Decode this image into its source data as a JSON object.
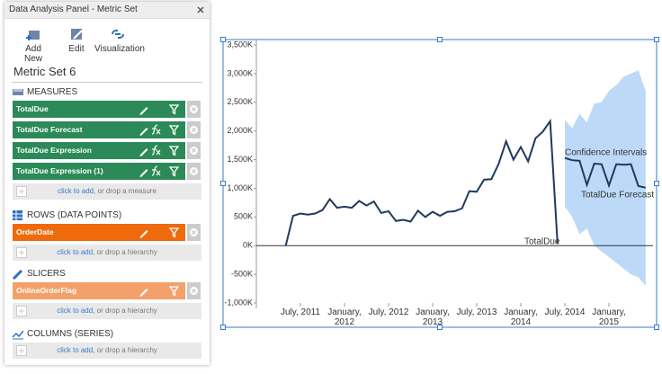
{
  "panel": {
    "title": "Data Analysis Panel - Metric Set",
    "toolbar": [
      "Add New",
      "Edit",
      "Visualization"
    ],
    "metric_set": "Metric Set 6",
    "sections": [
      {
        "title": "MEASURES",
        "color": "#2b8a57",
        "items": [
          {
            "label": "TotalDue",
            "formula": false
          },
          {
            "label": "TotalDue Forecast",
            "formula": true
          },
          {
            "label": "TotalDue Expression",
            "formula": true
          },
          {
            "label": "TotalDue Expression (1)",
            "formula": true
          }
        ],
        "drop_link": "click to add",
        "drop_text": ", or drop a measure"
      },
      {
        "title": "ROWS (DATA POINTS)",
        "color": "#ee6a0c",
        "items": [
          {
            "label": "OrderDate",
            "formula": false
          }
        ],
        "drop_link": "click to add",
        "drop_text": ", or drop a hierarchy"
      },
      {
        "title": "SLICERS",
        "color": "#f3a06a",
        "items": [
          {
            "label": "OnlineOrderFlag",
            "formula": false
          }
        ],
        "drop_link": "click to add",
        "drop_text": ", or drop a hierarchy"
      },
      {
        "title": "COLUMNS (SERIES)",
        "color": "#888888",
        "items": [],
        "drop_link": "click to add",
        "drop_text": ", or drop a hierarchy"
      }
    ]
  },
  "chart_data": {
    "type": "line",
    "xlim": [
      "2011-01",
      "2015-07"
    ],
    "xticks": [
      {
        "value": "2011-07",
        "label": "July, 2011"
      },
      {
        "value": "2012-01",
        "label": "January, 2012"
      },
      {
        "value": "2012-07",
        "label": "July, 2012"
      },
      {
        "value": "2013-01",
        "label": "January, 2013"
      },
      {
        "value": "2013-07",
        "label": "July, 2013"
      },
      {
        "value": "2014-01",
        "label": "January, 2014"
      },
      {
        "value": "2014-07",
        "label": "July, 2014"
      },
      {
        "value": "2015-01",
        "label": "January, 2015"
      }
    ],
    "ylim": [
      -1000,
      3500
    ],
    "yticks": [
      {
        "value": 3500,
        "label": "3,500K"
      },
      {
        "value": 3000,
        "label": "3,000K"
      },
      {
        "value": 2500,
        "label": "2,500K"
      },
      {
        "value": 2000,
        "label": "2,000K"
      },
      {
        "value": 1500,
        "label": "1,500K"
      },
      {
        "value": 1000,
        "label": "1,000K"
      },
      {
        "value": 500,
        "label": "500K"
      },
      {
        "value": 0,
        "label": "0K"
      },
      {
        "value": -500,
        "label": "-500K"
      },
      {
        "value": -1000,
        "label": "-1,000K"
      }
    ],
    "series": [
      {
        "name": "TotalDue",
        "color": "#1f3a5f",
        "x": [
          "2011-05",
          "2011-06",
          "2011-07",
          "2011-08",
          "2011-09",
          "2011-10",
          "2011-11",
          "2011-12",
          "2012-01",
          "2012-02",
          "2012-03",
          "2012-04",
          "2012-05",
          "2012-06",
          "2012-07",
          "2012-08",
          "2012-09",
          "2012-10",
          "2012-11",
          "2012-12",
          "2013-01",
          "2013-02",
          "2013-03",
          "2013-04",
          "2013-05",
          "2013-06",
          "2013-07",
          "2013-08",
          "2013-09",
          "2013-10",
          "2013-11",
          "2013-12",
          "2014-01",
          "2014-02",
          "2014-03",
          "2014-04",
          "2014-05",
          "2014-06"
        ],
        "values": [
          0,
          520,
          560,
          540,
          560,
          620,
          810,
          660,
          680,
          660,
          780,
          700,
          770,
          570,
          600,
          430,
          450,
          420,
          610,
          500,
          590,
          520,
          590,
          600,
          650,
          950,
          940,
          1150,
          1160,
          1430,
          1820,
          1500,
          1720,
          1470,
          1870,
          1990,
          2170,
          40
        ]
      },
      {
        "name": "TotalDue Forecast",
        "color": "#1f3a5f",
        "x": [
          "2014-07",
          "2014-08",
          "2014-09",
          "2014-10",
          "2014-11",
          "2014-12",
          "2015-01",
          "2015-02",
          "2015-03",
          "2015-04",
          "2015-05",
          "2015-06"
        ],
        "values": [
          1530,
          1490,
          1480,
          1060,
          1430,
          1420,
          1050,
          1420,
          1410,
          1420,
          1040,
          1010
        ]
      },
      {
        "name": "Confidence Intervals",
        "color": "#bcdaf8",
        "x": [
          "2014-07",
          "2014-08",
          "2014-09",
          "2014-10",
          "2014-11",
          "2014-12",
          "2015-01",
          "2015-02",
          "2015-03",
          "2015-04",
          "2015-05",
          "2015-06"
        ],
        "lower": [
          680,
          500,
          200,
          300,
          0,
          -100,
          -200,
          -300,
          -400,
          -500,
          -550,
          -700
        ],
        "upper": [
          2190,
          2050,
          2300,
          2150,
          2480,
          2500,
          2700,
          2800,
          2950,
          3000,
          3060,
          2700
        ]
      }
    ]
  }
}
